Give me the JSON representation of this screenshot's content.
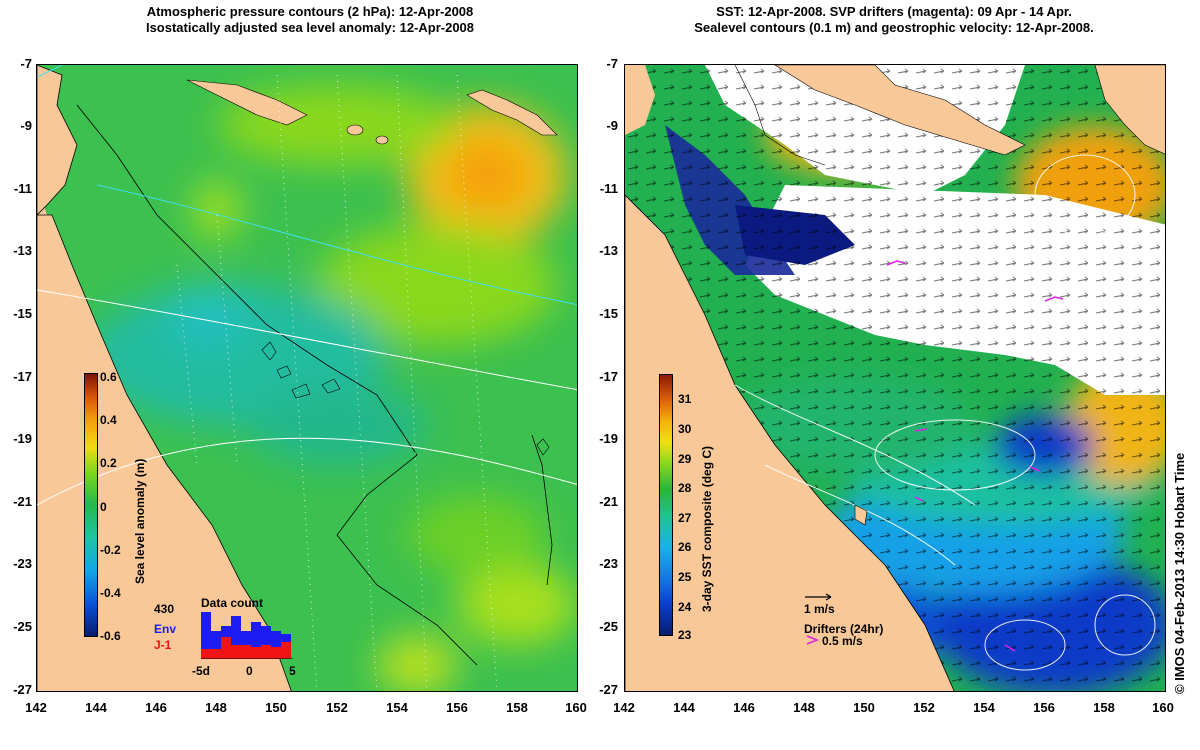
{
  "left_panel": {
    "title_line1": "Atmospheric pressure contours (2 hPa): 12-Apr-2008",
    "title_line2": "Isostatically adjusted sea level anomaly: 12-Apr-2008",
    "y_ticks": [
      "-7",
      "-9",
      "-11",
      "-13",
      "-15",
      "-17",
      "-19",
      "-21",
      "-23",
      "-25",
      "-27"
    ],
    "x_ticks": [
      "142",
      "144",
      "146",
      "148",
      "150",
      "152",
      "154",
      "156",
      "158",
      "160"
    ],
    "colorbar": {
      "title": "Sea level anomaly (m)",
      "labels": [
        "0.6",
        "0.4",
        "0.2",
        "0",
        "-0.2",
        "-0.4",
        "-0.6"
      ],
      "range": [
        -0.6,
        0.6
      ]
    },
    "data_count": {
      "title": "Data count",
      "count": "430",
      "series_env": "Env",
      "series_j1": "J-1",
      "axis_labels": [
        "-5d",
        "0",
        "5"
      ],
      "colors": {
        "env": "#1c1cf0",
        "j1": "#f01414"
      }
    }
  },
  "right_panel": {
    "title_line1": "SST: 12-Apr-2008. SVP drifters (magenta): 09 Apr - 14 Apr.",
    "title_line2": "Sealevel contours (0.1 m) and geostrophic velocity: 12-Apr-2008.",
    "y_ticks": [
      "-7",
      "-9",
      "-11",
      "-13",
      "-15",
      "-17",
      "-19",
      "-21",
      "-23",
      "-25",
      "-27"
    ],
    "x_ticks": [
      "142",
      "144",
      "146",
      "148",
      "150",
      "152",
      "154",
      "156",
      "158",
      "160"
    ],
    "colorbar": {
      "title": "3-day SST composite (deg C)",
      "labels": [
        "31",
        "30",
        "29",
        "28",
        "27",
        "26",
        "25",
        "24",
        "23"
      ],
      "range": [
        23,
        31.8
      ]
    },
    "vector_scale_label": "1 m/s",
    "drifters_label": "Drifters (24hr)",
    "drifter_speed_label": "0.5 m/s"
  },
  "credit": "© IMOS 04-Feb-2013 14:30 Hobart Time",
  "colors": {
    "land": "#f8c898",
    "cloud": "#ffffff",
    "drifter": "#e020e0"
  }
}
